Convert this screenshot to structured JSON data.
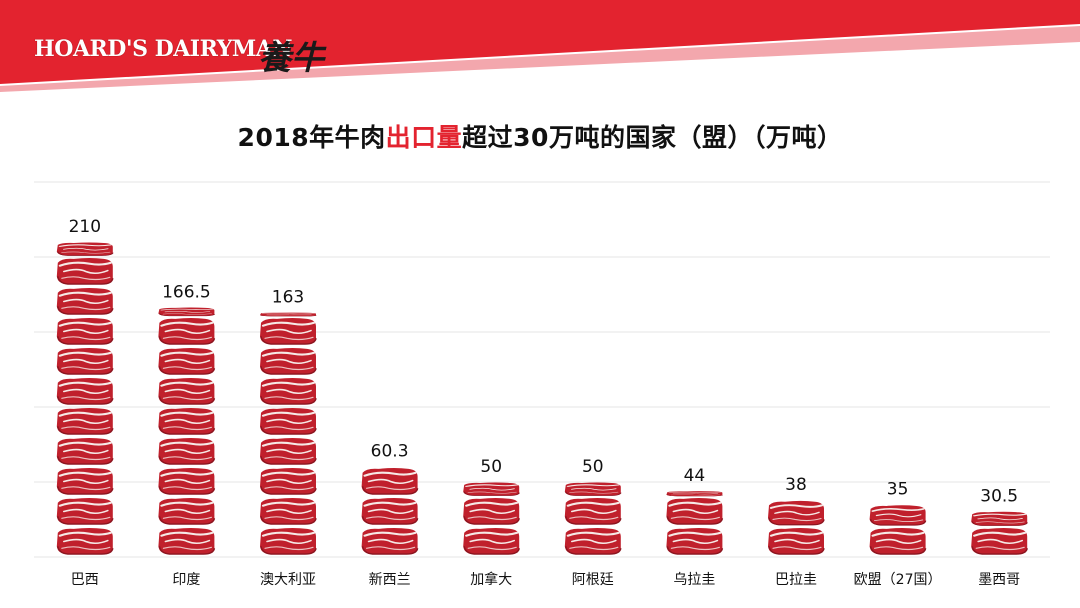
{
  "header": {
    "brand": "HOARD'S DAIRYMAN",
    "brand_cn": "養牛"
  },
  "title": {
    "prefix": "2018年牛肉",
    "highlight": "出口量",
    "suffix": "超过30万吨的国家（盟）（万吨）"
  },
  "colors": {
    "header_red": "#e3232f",
    "stripe_pink": "#f3a7ad",
    "meat_red": "#c0202c",
    "meat_dark": "#8c1520",
    "fat_white": "#f6e9e6",
    "gridline": "#e6e6e6"
  },
  "chart_data": {
    "type": "bar",
    "title": "2018年牛肉出口量超过30万吨的国家（盟）（万吨）",
    "categories": [
      "巴西",
      "印度",
      "澳大利亚",
      "新西兰",
      "加拿大",
      "阿根廷",
      "乌拉圭",
      "巴拉圭",
      "欧盟（27国）",
      "墨西哥"
    ],
    "series": [
      {
        "values": [
          210,
          166.5,
          163,
          60.3,
          50,
          50,
          44,
          38,
          35,
          30.5
        ],
        "labels": [
          "210",
          "166.5",
          "163",
          "60.3",
          "50",
          "50",
          "44",
          "38",
          "35",
          "30.5"
        ]
      }
    ],
    "ylim": [
      0,
      250
    ],
    "grid": true,
    "bar_style": "stacked beef steak pictograph",
    "legend": "none",
    "xlabel": "",
    "ylabel": ""
  }
}
